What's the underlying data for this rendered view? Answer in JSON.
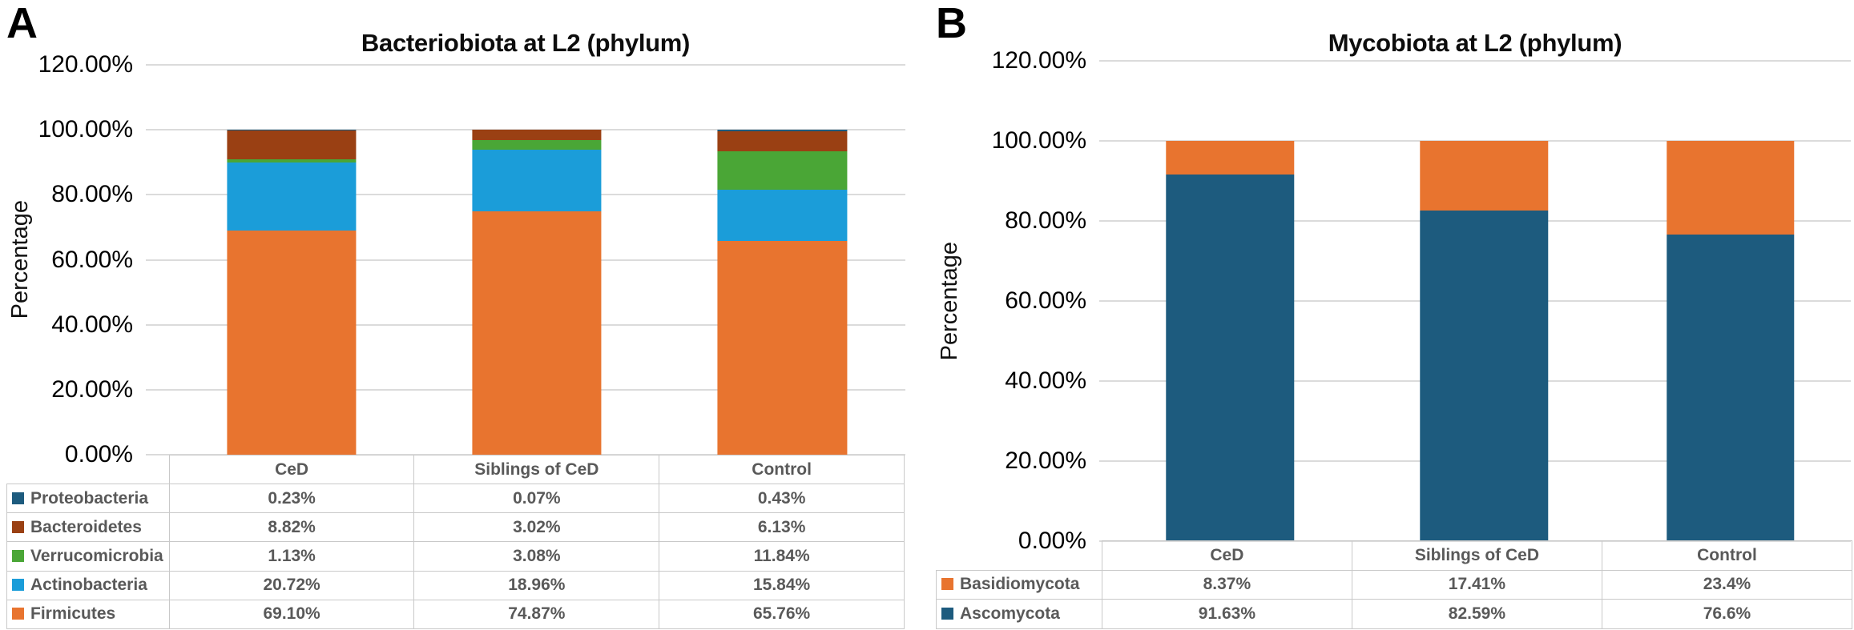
{
  "panels": [
    {
      "corner_label": "A",
      "title": "Bacteriobiota at L2 (phylum)",
      "y_axis": {
        "label": "Percentage",
        "max": 120,
        "step": 20,
        "ticks": [
          "120.00%",
          "100.00%",
          "80.00%",
          "60.00%",
          "40.00%",
          "20.00%",
          "0.00%"
        ]
      },
      "chart_data": {
        "type": "bar",
        "stacked": true,
        "grid": true,
        "ylim": [
          0,
          120
        ],
        "ylabel": "Percentage",
        "title": "Bacteriobiota at L2 (phylum)",
        "categories": [
          "CeD",
          "Siblings of CeD",
          "Control"
        ],
        "series": [
          {
            "name": "Proteobacteria",
            "color": "#1D5B7E",
            "values": [
              0.23,
              0.07,
              0.43
            ],
            "labels": [
              "0.23%",
              "0.07%",
              "0.43%"
            ]
          },
          {
            "name": "Bacteroidetes",
            "color": "#9A4013",
            "values": [
              8.82,
              3.02,
              6.13
            ],
            "labels": [
              "8.82%",
              "3.02%",
              "6.13%"
            ]
          },
          {
            "name": "Verrucomicrobia",
            "color": "#4AA636",
            "values": [
              1.13,
              3.08,
              11.84
            ],
            "labels": [
              "1.13%",
              "3.08%",
              "11.84%"
            ]
          },
          {
            "name": "Actinobacteria",
            "color": "#1B9DD9",
            "values": [
              20.72,
              18.96,
              15.84
            ],
            "labels": [
              "20.72%",
              "18.96%",
              "15.84%"
            ]
          },
          {
            "name": "Firmicutes",
            "color": "#E8742F",
            "values": [
              69.1,
              74.87,
              65.76
            ],
            "labels": [
              "69.10%",
              "74.87%",
              "65.76%"
            ]
          }
        ]
      }
    },
    {
      "corner_label": "B",
      "title": "Mycobiota at L2 (phylum)",
      "y_axis": {
        "label": "Percentage",
        "max": 120,
        "step": 20,
        "ticks": [
          "120.00%",
          "100.00%",
          "80.00%",
          "60.00%",
          "40.00%",
          "20.00%",
          "0.00%"
        ]
      },
      "chart_data": {
        "type": "bar",
        "stacked": true,
        "grid": true,
        "ylim": [
          0,
          120
        ],
        "ylabel": "Percentage",
        "title": "Mycobiota at L2 (phylum)",
        "categories": [
          "CeD",
          "Siblings of CeD",
          "Control"
        ],
        "series": [
          {
            "name": "Basidiomycota",
            "color": "#E8742F",
            "values": [
              8.37,
              17.41,
              23.4
            ],
            "labels": [
              "8.37%",
              "17.41%",
              "23.4%"
            ]
          },
          {
            "name": "Ascomycota",
            "color": "#1D5B7E",
            "values": [
              91.63,
              82.59,
              76.6
            ],
            "labels": [
              "91.63%",
              "82.59%",
              "76.6%"
            ]
          }
        ]
      }
    }
  ]
}
